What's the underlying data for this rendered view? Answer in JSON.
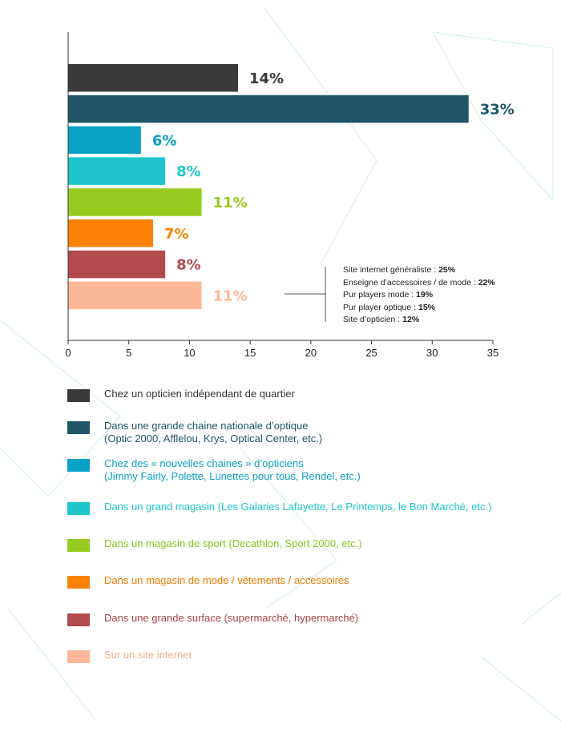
{
  "chart_data": {
    "type": "bar",
    "orientation": "horizontal",
    "values": [
      14,
      33,
      6,
      8,
      11,
      7,
      8,
      11
    ],
    "value_labels": [
      "14%",
      "33%",
      "6%",
      "8%",
      "11%",
      "7%",
      "8%",
      "11%"
    ],
    "colors": [
      "#3a3a3a",
      "#1f5566",
      "#0aa2c4",
      "#1ec6cc",
      "#96cc1f",
      "#fc8206",
      "#b24a4e",
      "#fdb89a"
    ],
    "xlim": [
      0,
      35
    ],
    "x_ticks": [
      "0",
      "5",
      "10",
      "15",
      "20",
      "25",
      "30",
      "35"
    ],
    "grid": false,
    "breakdown": [
      {
        "label": "Site internet généraliste : ",
        "value": "25%"
      },
      {
        "label": "Enseigne d’accessoires / de mode : ",
        "value": "22%"
      },
      {
        "label": "Pur players mode : ",
        "value": "19%"
      },
      {
        "label": "Pur player optique : ",
        "value": "15%"
      },
      {
        "label": "Site d’opticien : ",
        "value": "12%"
      }
    ]
  },
  "legend": [
    {
      "lines": [
        "Chez un opticien indépendant de quartier"
      ],
      "color": "#3a3a3a",
      "text_color": "#333333",
      "swatch_icon": "dark-gray-square"
    },
    {
      "lines": [
        "Dans une grande chaine nationale d’optique",
        "(Optic 2000, Afflelou, Krys, Optical Center, etc.)"
      ],
      "color": "#1f5566",
      "text_color": "#1f5566",
      "swatch_icon": "dark-teal-square"
    },
    {
      "lines": [
        "Chez des « nouvelles chaines » d’opticiens",
        "(Jimmy Fairly, Polette, Lunettes pour tous, Rendel, etc.)"
      ],
      "color": "#0aa2c4",
      "text_color": "#0aa2c4",
      "swatch_icon": "blue-square"
    },
    {
      "lines": [
        "Dans un grand magasin (Les Galaries Lafayette, Le Printemps, le Bon Marché, etc.)"
      ],
      "color": "#1ec6cc",
      "text_color": "#1ec6cc",
      "swatch_icon": "turquoise-square"
    },
    {
      "lines": [
        "Dans un magasin de sport (Decathlon, Sport 2000, etc.)"
      ],
      "color": "#96cc1f",
      "text_color": "#8cc21c",
      "swatch_icon": "green-square"
    },
    {
      "lines": [
        "Dans un magasin de mode / vêtements / accessoires"
      ],
      "color": "#fc8206",
      "text_color": "#f07c00",
      "swatch_icon": "orange-square"
    },
    {
      "lines": [
        "Dans une grande surface (supermarché, hypermarché)"
      ],
      "color": "#b24a4e",
      "text_color": "#a8444a",
      "swatch_icon": "red-square"
    },
    {
      "lines": [
        "Sur un site internet"
      ],
      "color": "#fdb89a",
      "text_color": "#f9ad8c",
      "swatch_icon": "peach-square"
    }
  ]
}
